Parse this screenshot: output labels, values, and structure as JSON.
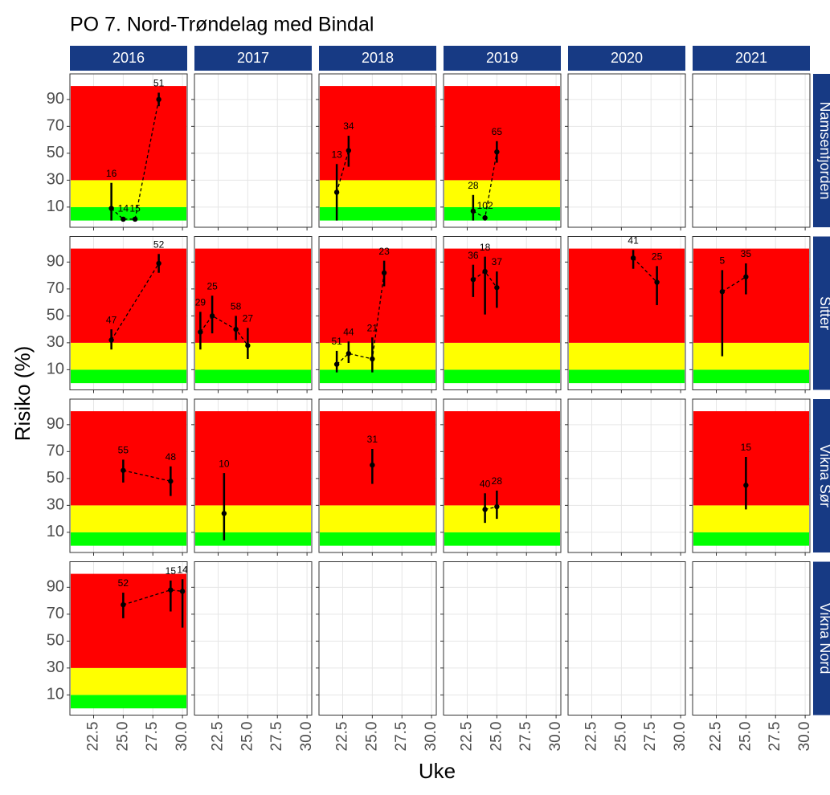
{
  "chart_data": {
    "type": "line",
    "title": "PO 7. Nord-Trøndelag med Bindal",
    "xlabel": "Uke",
    "ylabel": "Risiko (%)",
    "columns": [
      "2016",
      "2017",
      "2018",
      "2019",
      "2020",
      "2021"
    ],
    "rows": [
      "Namsenfjorden",
      "Sitter",
      "Vikna Sør",
      "Vikna Nord"
    ],
    "xlim": [
      20.5,
      30.4
    ],
    "xticks": [
      22.5,
      {
        "value": 25,
        "label": "25.0"
      },
      27.5,
      {
        "value": 30,
        "label": "30.0"
      }
    ],
    "ylim": [
      -5,
      109
    ],
    "yticks": [
      10,
      30,
      50,
      70,
      90
    ],
    "grid": true,
    "bands": [
      {
        "from": 0,
        "to": 10,
        "color": "#00ff00"
      },
      {
        "from": 10,
        "to": 30,
        "color": "#ffff00"
      },
      {
        "from": 30,
        "to": 100,
        "color": "#ff0000"
      }
    ],
    "point_color": "#000000",
    "strip_color": "#173a84",
    "panels": [
      [
        {
          "x": [
            24,
            25,
            26,
            28
          ],
          "values": [
            9,
            1,
            1,
            90
          ],
          "lower": [
            0,
            0,
            0,
            85
          ],
          "upper": [
            28,
            2,
            2,
            95
          ],
          "n": [
            16,
            14,
            15,
            51
          ]
        },
        {
          "x": [],
          "values": [],
          "lower": [],
          "upper": [],
          "n": []
        },
        {
          "x": [
            22,
            23
          ],
          "values": [
            21,
            52
          ],
          "lower": [
            0,
            40
          ],
          "upper": [
            42,
            63
          ],
          "n": [
            13,
            34
          ]
        },
        {
          "x": [
            23,
            24,
            25
          ],
          "values": [
            7,
            2,
            51
          ],
          "lower": [
            0,
            0,
            43
          ],
          "upper": [
            19,
            4,
            59
          ],
          "n": [
            28,
            102,
            65
          ]
        },
        {
          "x": [],
          "values": [],
          "lower": [],
          "upper": [],
          "n": []
        },
        {
          "x": [],
          "values": [],
          "lower": [],
          "upper": [],
          "n": []
        }
      ],
      [
        {
          "x": [
            24,
            28
          ],
          "values": [
            32,
            89
          ],
          "lower": [
            25,
            82
          ],
          "upper": [
            40,
            96
          ],
          "n": [
            47,
            52
          ]
        },
        {
          "x": [
            21,
            22,
            24,
            25
          ],
          "values": [
            38,
            50,
            40,
            28
          ],
          "lower": [
            25,
            37,
            32,
            18
          ],
          "upper": [
            53,
            65,
            50,
            41
          ],
          "n": [
            29,
            25,
            58,
            27
          ]
        },
        {
          "x": [
            22,
            23,
            25,
            26
          ],
          "values": [
            14,
            22,
            18,
            82
          ],
          "lower": [
            8,
            15,
            8,
            72
          ],
          "upper": [
            24,
            31,
            34,
            91
          ],
          "n": [
            51,
            44,
            21,
            23
          ]
        },
        {
          "x": [
            23,
            24,
            25
          ],
          "values": [
            77,
            83,
            71
          ],
          "lower": [
            64,
            51,
            56
          ],
          "upper": [
            88,
            94,
            83
          ],
          "n": [
            36,
            18,
            37
          ]
        },
        {
          "x": [
            26,
            28
          ],
          "values": [
            93,
            75
          ],
          "lower": [
            85,
            58
          ],
          "upper": [
            99,
            87
          ],
          "n": [
            41,
            25
          ]
        },
        {
          "x": [
            23,
            25
          ],
          "values": [
            68,
            79
          ],
          "lower": [
            20,
            66
          ],
          "upper": [
            84,
            89
          ],
          "n": [
            5,
            35
          ]
        }
      ],
      [
        {
          "x": [
            25,
            29
          ],
          "values": [
            56,
            48
          ],
          "lower": [
            47,
            37
          ],
          "upper": [
            64,
            59
          ],
          "n": [
            55,
            48
          ]
        },
        {
          "x": [
            23
          ],
          "values": [
            24
          ],
          "lower": [
            4
          ],
          "upper": [
            54
          ],
          "n": [
            10
          ]
        },
        {
          "x": [
            25
          ],
          "values": [
            60
          ],
          "lower": [
            46
          ],
          "upper": [
            72
          ],
          "n": [
            31
          ]
        },
        {
          "x": [
            24,
            25
          ],
          "values": [
            27,
            29
          ],
          "lower": [
            17,
            20
          ],
          "upper": [
            39,
            41
          ],
          "n": [
            40,
            28
          ]
        },
        {
          "x": [],
          "values": [],
          "lower": [],
          "upper": [],
          "n": []
        },
        {
          "x": [
            25
          ],
          "values": [
            45
          ],
          "lower": [
            27
          ],
          "upper": [
            66
          ],
          "n": [
            15
          ]
        }
      ],
      [
        {
          "x": [
            25,
            29,
            30
          ],
          "values": [
            77,
            88,
            87
          ],
          "lower": [
            67,
            72,
            60
          ],
          "upper": [
            86,
            95,
            96
          ],
          "n": [
            52,
            15,
            14
          ]
        },
        {
          "x": [],
          "values": [],
          "lower": [],
          "upper": [],
          "n": []
        },
        {
          "x": [],
          "values": [],
          "lower": [],
          "upper": [],
          "n": []
        },
        {
          "x": [],
          "values": [],
          "lower": [],
          "upper": [],
          "n": []
        },
        {
          "x": [],
          "values": [],
          "lower": [],
          "upper": [],
          "n": []
        },
        {
          "x": [],
          "values": [],
          "lower": [],
          "upper": [],
          "n": []
        }
      ]
    ]
  }
}
